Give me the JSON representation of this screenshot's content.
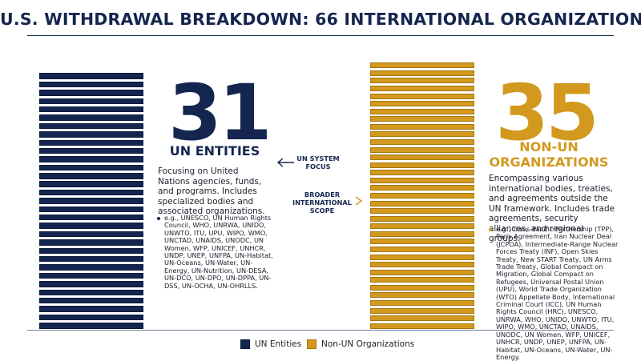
{
  "title": "U.S. WITHDRAWAL BREAKDOWN: 66 INTERNATIONAL ORGANIZATIONS",
  "colors": {
    "un": "#14264f",
    "non_un": "#d2991e",
    "text": "#1b1f2b"
  },
  "chart_data": {
    "type": "bar",
    "title": "U.S. WITHDRAWAL BREAKDOWN: 66 INTERNATIONAL ORGANIZATIONS",
    "categories": [
      "UN Entities",
      "Non-UN Organizations"
    ],
    "values": [
      31,
      35
    ],
    "total": 66,
    "legend_position": "bottom-center"
  },
  "un": {
    "number": "31",
    "heading": "UN ENTITIES",
    "description": "Focusing on United Nations agencies, funds, and programs. Includes specialized bodies and associated organizations.",
    "examples": "e.g., UNESCO, UN Human Rights Council, WHO, UNRWA, UNIDO, UNWTO, ITU, UPU, WIPO, WMO, UNCTAD, UNAIDS, UNODC, UN Women, WFP, UNICEF, UNHCR, UNDP, UNEP, UNFPA, UN-Habitat, UN-Oceans, UN-Water, UN-Energy, UN-Nutrition, UN-DESA, UN-DCO, UN-DPO, UN-DPPA, UN-DSS, UN-OCHA, UN-OHRLLS."
  },
  "non_un": {
    "number": "35",
    "heading_line1": "NON-UN",
    "heading_line2": "ORGANIZATIONS",
    "description": "Encompassing various international bodies, treaties, and agreements outside the UN framework. Includes trade agreements, security alliances, and regional groups.",
    "examples": "e.g., Trans-Pacific Partnership (TPP), Paris Agreement, Iran Nuclear Deal (JCPOA), Intermediate-Range Nuclear Forces Treaty (INF), Open Skies Treaty, New START Treaty, UN Arms Trade Treaty, Global Compact on Migration, Global Compact on Refugees, Universal Postal Union (UPU), World Trade Organization (WTO) Appellate Body, International Criminal Court (ICC), UN Human Rights Council (HRC), UNESCO, UNRWA, WHO, UNIDO, UNWTO, ITU, WIPO, WMO, UNCTAD, UNAIDS, UNODC, UN Women, WFP, UNICEF, UNHCR, UNDP, UNEP, UNFPA, UN-Habitat, UN-Oceans, UN-Water, UN-Energy."
  },
  "middle": {
    "un_focus_line1": "UN SYSTEM",
    "un_focus_line2": "FOCUS",
    "broader_line1": "BROADER",
    "broader_line2": "INTERNATIONAL",
    "broader_line3": "SCOPE"
  },
  "legend": {
    "un_label": "UN Entities",
    "non_un_label": "Non-UN Organizations"
  }
}
